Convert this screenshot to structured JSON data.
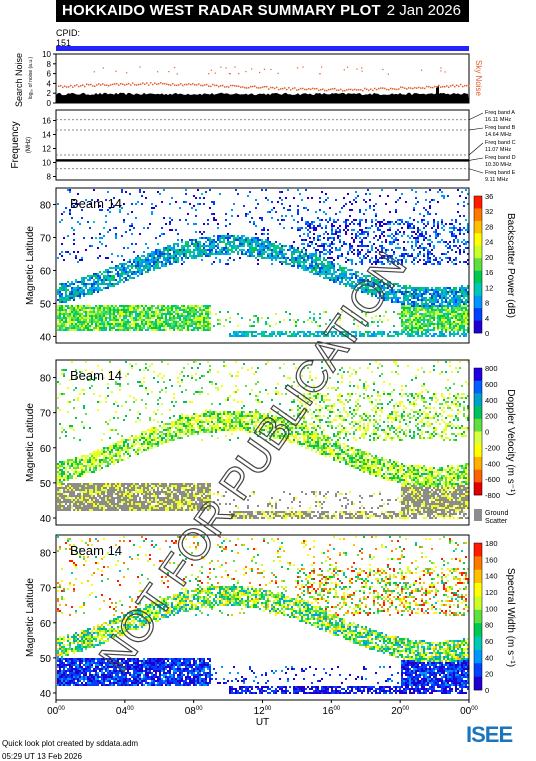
{
  "header": {
    "title": "HOKKAIDO WEST RADAR SUMMARY PLOT",
    "date": "2 Jan 2026"
  },
  "cpid": {
    "label": "CPID:",
    "value": "151"
  },
  "noise_panel": {
    "ylabel": "Search Noise",
    "yunit": "log₁₀ of noise (a.u.)",
    "right_label": "Sky Noise",
    "ticks": [
      "0",
      "2",
      "4",
      "6",
      "8",
      "10"
    ]
  },
  "freq_panel": {
    "ylabel": "Frequency",
    "yunit": "(MHz)",
    "ticks": [
      "8",
      "10",
      "12",
      "14",
      "16"
    ],
    "bands": [
      {
        "name": "Freq band A",
        "freq": "16.11 MHz"
      },
      {
        "name": "Freq band B",
        "freq": "14.64 MHz"
      },
      {
        "name": "Freq band C",
        "freq": "11.07 MHz"
      },
      {
        "name": "Freq band D",
        "freq": "10.30 MHz"
      },
      {
        "name": "Freq band E",
        "freq": "9.11 MHz"
      }
    ]
  },
  "panels": [
    {
      "beam": "Beam 14",
      "ylabel": "Magnetic Latitude",
      "colorbar_label": "Backscatter Power (dB)",
      "colorbar_ticks": [
        "0",
        "4",
        "8",
        "12",
        "16",
        "20",
        "24",
        "28",
        "32",
        "36"
      ]
    },
    {
      "beam": "Beam 14",
      "ylabel": "Magnetic Latitude",
      "colorbar_label": "Doppler Velocity (m s⁻¹)",
      "colorbar_ticks": [
        "800",
        "600",
        "400",
        "200",
        "0",
        "-200",
        "-400",
        "-600",
        "-800"
      ],
      "ground_label": "Ground Scatter"
    },
    {
      "beam": "Beam 14",
      "ylabel": "Magnetic Latitude",
      "colorbar_label": "Spectral Width (m s⁻¹)",
      "colorbar_ticks": [
        "0",
        "20",
        "40",
        "60",
        "80",
        "100",
        "120",
        "140",
        "160",
        "180"
      ]
    }
  ],
  "chart_data": {
    "type": "heatmap",
    "xlabel": "UT",
    "x_ticks": [
      "00",
      "04",
      "08",
      "12",
      "16",
      "20",
      "00"
    ],
    "x_tick_suffix": "00",
    "xlim": [
      0,
      24
    ],
    "ylim": [
      38,
      85
    ],
    "y_ticks": [
      40,
      50,
      60,
      70,
      80
    ],
    "freq_ylim": [
      7.5,
      17.5
    ],
    "noise_ylim": [
      0,
      10
    ]
  },
  "footer": {
    "line1": "Quick look plot created by sddata.adm",
    "line2": "05:29 UT 13 Feb 2026",
    "logo": "ISEE"
  },
  "watermark": "NOT FOR PUBLICATION",
  "colors": {
    "title_bg": "#000000",
    "cpid_bar": "#2323ff",
    "sky_noise": "#e0602a",
    "ground": "#8c8c8c"
  }
}
